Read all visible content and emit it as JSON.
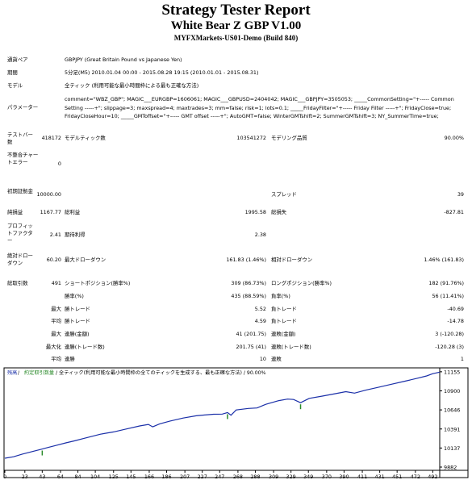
{
  "report": {
    "title": "Strategy Tester Report",
    "ea_name": "White Bear Z GBP V1.00",
    "server": "MYFXMarkets-US01-Demo (Build 840)"
  },
  "summary": {
    "symbol_label": "通貨ペア",
    "symbol_value": "GBPJPY (Great Britain Pound vs Japanese Yen)",
    "period_label": "期間",
    "period_value": "5分足(M5) 2010.01.04 00:00 - 2015.08.28 19:15 (2010.01.01 - 2015.08.31)",
    "model_label": "モデル",
    "model_value": "全ティック (利用可能な最小時間枠による最も正確な方法)",
    "params_label": "パラメーター",
    "params_value": "comment=\"WBZ_GBP\"; MAGIC___EURGBP=1606061; MAGIC___GBPUSD=2404042; MAGIC___GBPJPY=3505053; _____CommonSetting=\"+----- Common Setting -----+\"; slippage=3; maxspread=4; maxtrades=3; mm=false; risk=1; lots=0.1; _____FridayFilter=\"+----- Friday Filter -----+\"; FridayClose=true; FridayCloseHour=10; _____GMToffset=\"+----- GMT offset -----+\"; AutoGMT=false; WinterGMTshift=2; SummerGMTshift=3; NY_SummerTime=true;",
    "bars_label": "テストバー数",
    "bars_value": "418172",
    "ticks_label": "モデルティック数",
    "ticks_value": "103541272",
    "quality_label": "モデリング品質",
    "quality_value": "90.00%",
    "mismatch_label": "不整合チャートエラー",
    "mismatch_value": "0",
    "deposit_label": "初期証拠金",
    "deposit_value": "10000.00",
    "spread_label": "スプレッド",
    "spread_value": "39",
    "netprofit_label": "純損益",
    "netprofit_value": "1167.77",
    "grossprofit_label": "総利益",
    "grossprofit_value": "1995.58",
    "grossloss_label": "総損失",
    "grossloss_value": "-827.81",
    "pf_label": "プロフィットファクター",
    "pf_value": "2.41",
    "expected_label": "期待利得",
    "expected_value": "2.38",
    "absdd_label": "絶対ドローダウン",
    "absdd_value": "60.20",
    "maxdd_label": "最大ドローダウン",
    "maxdd_value": "161.83 (1.46%)",
    "reldd_label": "相対ドローダウン",
    "reldd_value": "1.46% (161.83)",
    "trades_label": "総取引数",
    "trades_value": "491",
    "short_label": "ショートポジション(勝率%)",
    "short_value": "309 (86.73%)",
    "long_label": "ロングポジション(勝率%)",
    "long_value": "182 (91.76%)",
    "win_label": "勝率(%)",
    "win_value": "435 (88.59%)",
    "loss_label": "負率(%)",
    "loss_value": "56 (11.41%)",
    "max_label": "最大",
    "avg_label": "平均",
    "maxc_label": "最大化",
    "largest_win_label": "勝トレード",
    "largest_win_value": "5.52",
    "largest_loss_label": "負トレード",
    "largest_loss_value": "-40.69",
    "avg_win_label": "勝トレード",
    "avg_win_value": "4.59",
    "avg_loss_label": "負トレード",
    "avg_loss_value": "-14.78",
    "cons_win_label": "連勝(金額)",
    "cons_win_value": "41 (201.75)",
    "cons_loss_label": "連敗(金額)",
    "cons_loss_value": "3 (-120.28)",
    "cons_profit_label": "連勝(トレード数)",
    "cons_profit_value": "201.75 (41)",
    "cons_lossamt_label": "連敗(トレード数)",
    "cons_lossamt_value": "-120.28 (3)",
    "avg_cons_win_label": "連勝",
    "avg_cons_win_value": "10",
    "avg_cons_loss_label": "連敗",
    "avg_cons_loss_value": "1"
  },
  "chart_legend": {
    "balance_label": "残高",
    "sep": " / ",
    "lots_label": "約定取引数量",
    "rest": " / 全ティック(利用可能な最小時間枠の全てのティックを生成する、最も正確な方法) / 90.00%"
  },
  "colors": {
    "balance_line": "#1a2fa8",
    "balance_label_color": "#1a2fa8",
    "lots_label_color": "#2a8a2a",
    "lots_bar": "#2a8a2a"
  },
  "chart_data": {
    "type": "line",
    "xlabel": "",
    "ylabel": "",
    "x_ticks": [
      0,
      23,
      43,
      64,
      84,
      104,
      125,
      145,
      166,
      186,
      207,
      227,
      247,
      268,
      288,
      309,
      329,
      349,
      370,
      390,
      411,
      431,
      451,
      472,
      492
    ],
    "y_ticks": [
      9882,
      10137,
      10391,
      10646,
      10900,
      11155
    ],
    "xlim": [
      0,
      500
    ],
    "ylim": [
      9882,
      11175
    ],
    "series": [
      {
        "name": "残高",
        "points": [
          [
            0,
            10000
          ],
          [
            10,
            10020
          ],
          [
            20,
            10055
          ],
          [
            30,
            10085
          ],
          [
            40,
            10115
          ],
          [
            50,
            10145
          ],
          [
            60,
            10175
          ],
          [
            70,
            10205
          ],
          [
            80,
            10232
          ],
          [
            90,
            10262
          ],
          [
            100,
            10292
          ],
          [
            110,
            10322
          ],
          [
            125,
            10352
          ],
          [
            140,
            10392
          ],
          [
            155,
            10432
          ],
          [
            165,
            10452
          ],
          [
            170,
            10420
          ],
          [
            178,
            10460
          ],
          [
            190,
            10497
          ],
          [
            205,
            10537
          ],
          [
            220,
            10567
          ],
          [
            230,
            10578
          ],
          [
            240,
            10588
          ],
          [
            250,
            10590
          ],
          [
            256,
            10610
          ],
          [
            260,
            10575
          ],
          [
            266,
            10645
          ],
          [
            280,
            10665
          ],
          [
            290,
            10672
          ],
          [
            300,
            10720
          ],
          [
            315,
            10770
          ],
          [
            325,
            10790
          ],
          [
            332,
            10785
          ],
          [
            340,
            10742
          ],
          [
            350,
            10800
          ],
          [
            365,
            10830
          ],
          [
            380,
            10862
          ],
          [
            392,
            10890
          ],
          [
            402,
            10870
          ],
          [
            415,
            10910
          ],
          [
            430,
            10950
          ],
          [
            445,
            10990
          ],
          [
            460,
            11030
          ],
          [
            475,
            11070
          ],
          [
            485,
            11100
          ],
          [
            492,
            11130
          ],
          [
            500,
            11150
          ]
        ]
      }
    ],
    "lots_marks": [
      {
        "x": 43,
        "lots": 0.1
      },
      {
        "x": 256,
        "lots": 0.1
      },
      {
        "x": 340,
        "lots": 0.1
      }
    ]
  }
}
